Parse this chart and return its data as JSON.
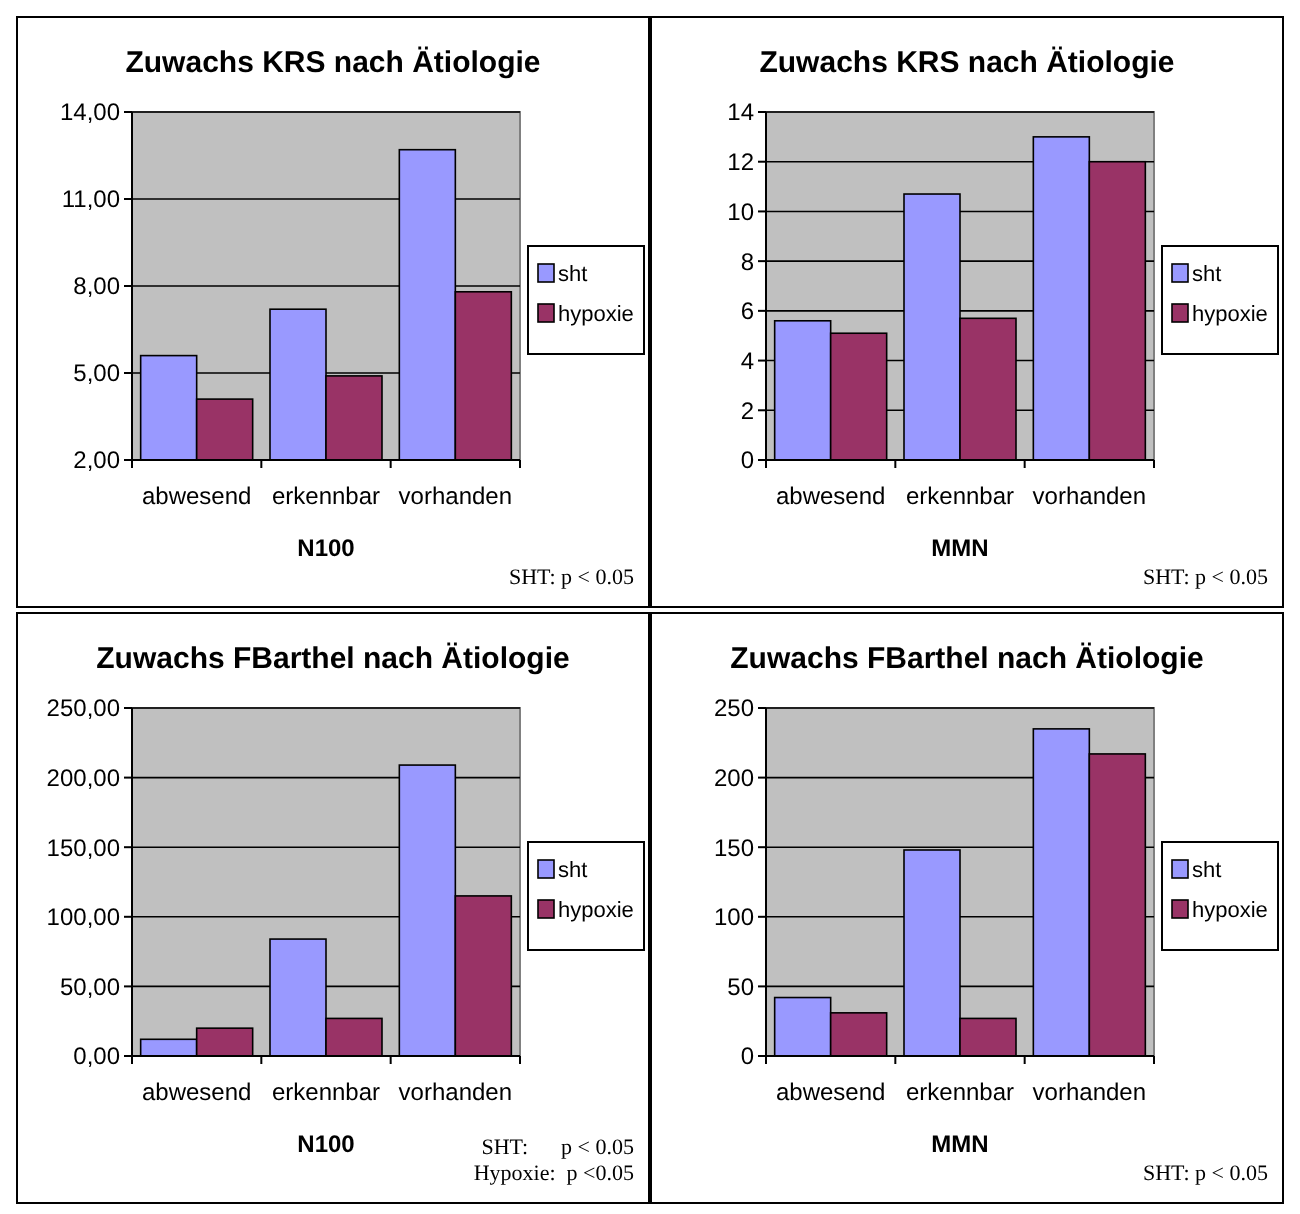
{
  "chart_data": [
    {
      "type": "bar",
      "title": "Zuwachs KRS nach Ätiologie",
      "xlabel": "N100",
      "categories": [
        "abwesend",
        "erkennbar",
        "vorhanden"
      ],
      "series": [
        {
          "name": "sht",
          "color": "#9999ff",
          "values": [
            5.6,
            7.2,
            12.7
          ]
        },
        {
          "name": "hypoxie",
          "color": "#993366",
          "values": [
            4.1,
            4.9,
            7.8
          ]
        }
      ],
      "ylim": [
        2,
        14
      ],
      "yticks": [
        {
          "value": 2,
          "label": "2,00"
        },
        {
          "value": 5,
          "label": "5,00"
        },
        {
          "value": 8,
          "label": "8,00"
        },
        {
          "value": 11,
          "label": "11,00"
        },
        {
          "value": 14,
          "label": "14,00"
        }
      ],
      "grid": "y",
      "legend": "right",
      "annotations": [
        "SHT: p < 0.05"
      ]
    },
    {
      "type": "bar",
      "title": "Zuwachs KRS nach Ätiologie",
      "xlabel": "MMN",
      "categories": [
        "abwesend",
        "erkennbar",
        "vorhanden"
      ],
      "series": [
        {
          "name": "sht",
          "color": "#9999ff",
          "values": [
            5.6,
            10.7,
            13.0
          ]
        },
        {
          "name": "hypoxie",
          "color": "#993366",
          "values": [
            5.1,
            5.7,
            12.0
          ]
        }
      ],
      "ylim": [
        0,
        14
      ],
      "yticks": [
        0,
        2,
        4,
        6,
        8,
        10,
        12,
        14
      ],
      "grid": "y",
      "legend": "right",
      "annotations": [
        "SHT: p < 0.05"
      ]
    },
    {
      "type": "bar",
      "title": "Zuwachs FBarthel nach Ätiologie",
      "xlabel": "N100",
      "categories": [
        "abwesend",
        "erkennbar",
        "vorhanden"
      ],
      "series": [
        {
          "name": "sht",
          "color": "#9999ff",
          "values": [
            12,
            84,
            209
          ]
        },
        {
          "name": "hypoxie",
          "color": "#993366",
          "values": [
            20,
            27,
            115
          ]
        }
      ],
      "ylim": [
        0,
        250
      ],
      "yticks": [
        {
          "value": 0,
          "label": "0,00"
        },
        {
          "value": 50,
          "label": "50,00"
        },
        {
          "value": 100,
          "label": "100,00"
        },
        {
          "value": 150,
          "label": "150,00"
        },
        {
          "value": 200,
          "label": "200,00"
        },
        {
          "value": 250,
          "label": "250,00"
        }
      ],
      "grid": "y",
      "legend": "right",
      "annotations": [
        "SHT:      p < 0.05",
        "Hypoxie:  p <0.05"
      ]
    },
    {
      "type": "bar",
      "title": "Zuwachs FBarthel nach Ätiologie",
      "xlabel": "MMN",
      "categories": [
        "abwesend",
        "erkennbar",
        "vorhanden"
      ],
      "series": [
        {
          "name": "sht",
          "color": "#9999ff",
          "values": [
            42,
            148,
            235
          ]
        },
        {
          "name": "hypoxie",
          "color": "#993366",
          "values": [
            31,
            27,
            217
          ]
        }
      ],
      "ylim": [
        0,
        250
      ],
      "yticks": [
        0,
        50,
        100,
        150,
        200,
        250
      ],
      "grid": "y",
      "legend": "right",
      "annotations": [
        "SHT: p < 0.05"
      ]
    }
  ]
}
